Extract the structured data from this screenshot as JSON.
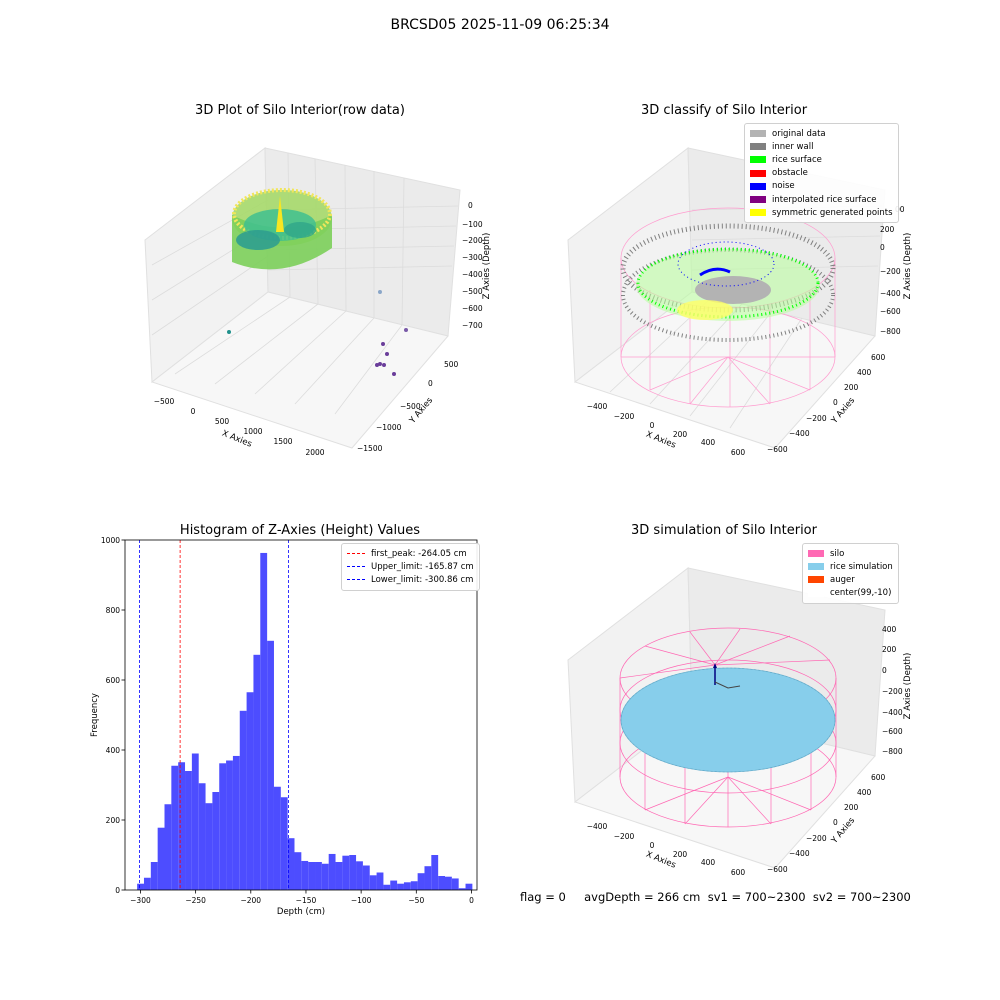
{
  "figure": {
    "title": "BRCSD05 2025-11-09 06:25:34",
    "footer": "flag = 0     avgDepth = 266 cm  sv1 = 700~2300  sv2 = 700~2300"
  },
  "panel1": {
    "title": "3D Plot of Silo Interior(row data)",
    "xlabel": "X Axies",
    "ylabel": "Y Axies",
    "zlabel": "Z Axies (Depth)",
    "xticks": [
      "−500",
      "0",
      "500",
      "1000",
      "1500",
      "2000"
    ],
    "yticks": [
      "500",
      "0",
      "−500",
      "−1000",
      "−1500"
    ],
    "zticks": [
      "0",
      "−100",
      "−200",
      "−300",
      "−400",
      "−500",
      "−600",
      "−700"
    ]
  },
  "panel2": {
    "title": "3D classify of Silo Interior",
    "xlabel": "X Axies",
    "ylabel": "Y Axies",
    "zlabel": "Z Axies (Depth)",
    "xticks": [
      "−400",
      "−200",
      "0",
      "200",
      "400",
      "600"
    ],
    "yticks": [
      "600",
      "400",
      "200",
      "0",
      "−200",
      "−400",
      "−600"
    ],
    "zticks": [
      "200",
      "0",
      "−200",
      "−400",
      "−600",
      "−800"
    ],
    "zticks_partial_top": "00",
    "legend": [
      {
        "label": "original data",
        "color": "#b3b3b3"
      },
      {
        "label": "inner wall",
        "color": "#808080"
      },
      {
        "label": "rice surface",
        "color": "#00ff00"
      },
      {
        "label": "obstacle",
        "color": "#ff0000"
      },
      {
        "label": "noise",
        "color": "#0000ff"
      },
      {
        "label": "interpolated rice surface",
        "color": "#800080"
      },
      {
        "label": "symmetric generated points",
        "color": "#ffff00"
      }
    ]
  },
  "panel3": {
    "title": "Histogram of Z-Axies (Height) Values",
    "legend": [
      {
        "label": "first_peak: -264.05 cm",
        "color": "#ff0000"
      },
      {
        "label": "Upper_limit: -165.87 cm",
        "color": "#0000ff"
      },
      {
        "label": "Lower_limit: -300.86 cm",
        "color": "#0000ff"
      }
    ]
  },
  "panel4": {
    "title": "3D simulation of Silo Interior",
    "xlabel": "X Axies",
    "ylabel": "Y Axies",
    "zlabel": "Z Axies (Depth)",
    "xticks": [
      "−400",
      "−200",
      "0",
      "200",
      "400",
      "600"
    ],
    "yticks": [
      "600",
      "400",
      "200",
      "0",
      "−200",
      "−400",
      "−600"
    ],
    "zticks": [
      "400",
      "200",
      "0",
      "−200",
      "−400",
      "−600",
      "−800"
    ],
    "legend": [
      {
        "label": "silo",
        "color": "#ff69b4"
      },
      {
        "label": "rice simulation",
        "color": "#87ceeb"
      },
      {
        "label": "auger",
        "color": "#ff4500"
      },
      {
        "label": "center(99,-10)",
        "color": "#ffffff"
      }
    ]
  },
  "chart_data": {
    "type": "bar",
    "title": "Histogram of Z-Axies (Height) Values",
    "xlabel": "Depth (cm)",
    "ylabel": "Frequency",
    "xlim": [
      -314,
      5
    ],
    "ylim": [
      0,
      1000
    ],
    "xticks": [
      -300,
      -250,
      -200,
      -150,
      -100,
      -50,
      0
    ],
    "xtick_labels": [
      "−300",
      "−250",
      "−200",
      "−150",
      "−100",
      "−50",
      "0"
    ],
    "yticks": [
      0,
      200,
      400,
      600,
      800,
      1000
    ],
    "bin_start": -303,
    "bin_width": 6.2,
    "values": [
      18,
      35,
      80,
      178,
      245,
      355,
      365,
      340,
      390,
      305,
      248,
      280,
      362,
      370,
      383,
      512,
      565,
      672,
      963,
      712,
      295,
      265,
      148,
      108,
      83,
      80,
      80,
      75,
      103,
      80,
      98,
      100,
      82,
      70,
      42,
      50,
      15,
      27,
      18,
      22,
      25,
      48,
      68,
      100,
      40,
      38,
      33,
      5,
      18
    ],
    "vlines": [
      {
        "x": -264.05,
        "color": "#ff0000",
        "name": "first_peak: -264.05 cm"
      },
      {
        "x": -165.87,
        "color": "#0000ff",
        "name": "Upper_limit: -165.87 cm"
      },
      {
        "x": -300.86,
        "color": "#0000ff",
        "name": "Lower_limit: -300.86 cm"
      }
    ],
    "bar_color": "#4d4dff",
    "grid": false,
    "legend_position": "upper right"
  }
}
